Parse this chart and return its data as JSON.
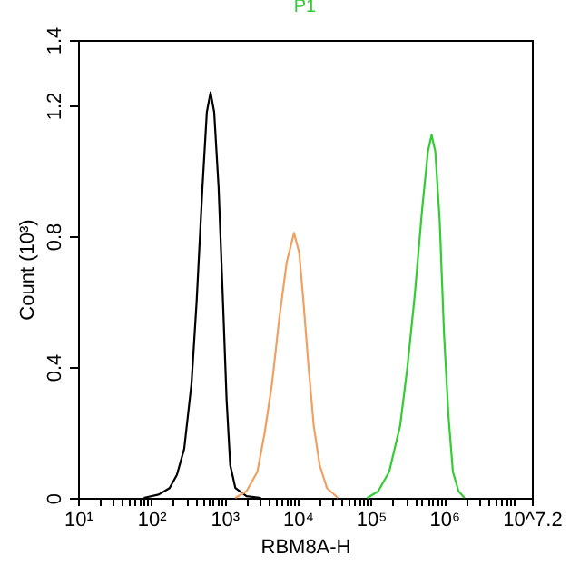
{
  "chart_data": {
    "type": "line",
    "title": "P1",
    "xlabel": "RBM8A-H",
    "ylabel": "Count (10³)",
    "log": "x",
    "grid": false,
    "marker": "none",
    "line_style": "solid",
    "xlim": [
      10,
      15848931.92
    ],
    "xticks": [
      {
        "value": 10,
        "label": "10¹"
      },
      {
        "value": 100,
        "label": "10²"
      },
      {
        "value": 1000,
        "label": "10³"
      },
      {
        "value": 10000,
        "label": "10⁴"
      },
      {
        "value": 100000,
        "label": "10⁵"
      },
      {
        "value": 1000000,
        "label": "10⁶"
      },
      {
        "value": 15848931.92,
        "label": "10^7.2"
      },
      {
        "value": 20,
        "label": null
      },
      {
        "value": 30,
        "label": null
      },
      {
        "value": 40,
        "label": null
      },
      {
        "value": 50,
        "label": null
      },
      {
        "value": 60,
        "label": null
      },
      {
        "value": 70,
        "label": null
      },
      {
        "value": 80,
        "label": null
      },
      {
        "value": 90,
        "label": null
      },
      {
        "value": 200,
        "label": null
      },
      {
        "value": 300,
        "label": null
      },
      {
        "value": 400,
        "label": null
      },
      {
        "value": 500,
        "label": null
      },
      {
        "value": 600,
        "label": null
      },
      {
        "value": 700,
        "label": null
      },
      {
        "value": 800,
        "label": null
      },
      {
        "value": 900,
        "label": null
      },
      {
        "value": 2000,
        "label": null
      },
      {
        "value": 3000,
        "label": null
      },
      {
        "value": 4000,
        "label": null
      },
      {
        "value": 5000,
        "label": null
      },
      {
        "value": 6000,
        "label": null
      },
      {
        "value": 7000,
        "label": null
      },
      {
        "value": 8000,
        "label": null
      },
      {
        "value": 9000,
        "label": null
      },
      {
        "value": 20000,
        "label": null
      },
      {
        "value": 30000,
        "label": null
      },
      {
        "value": 40000,
        "label": null
      },
      {
        "value": 50000,
        "label": null
      },
      {
        "value": 60000,
        "label": null
      },
      {
        "value": 70000,
        "label": null
      },
      {
        "value": 80000,
        "label": null
      },
      {
        "value": 90000,
        "label": null
      },
      {
        "value": 200000,
        "label": null
      },
      {
        "value": 300000,
        "label": null
      },
      {
        "value": 400000,
        "label": null
      },
      {
        "value": 500000,
        "label": null
      },
      {
        "value": 600000,
        "label": null
      },
      {
        "value": 700000,
        "label": null
      },
      {
        "value": 800000,
        "label": null
      },
      {
        "value": 900000,
        "label": null
      },
      {
        "value": 2000000,
        "label": null
      },
      {
        "value": 3000000,
        "label": null
      },
      {
        "value": 4000000,
        "label": null
      },
      {
        "value": 5000000,
        "label": null
      },
      {
        "value": 6000000,
        "label": null
      },
      {
        "value": 7000000,
        "label": null
      },
      {
        "value": 8000000,
        "label": null
      },
      {
        "value": 9000000,
        "label": null
      }
    ],
    "ylim": [
      0,
      1.4
    ],
    "yticks": [
      0,
      0.4,
      0.8,
      1.2,
      1.4
    ],
    "series": [
      {
        "color": "#000000",
        "x": [
          79,
          126,
          178,
          224,
          282,
          355,
          417,
          501,
          575,
          646,
          724,
          832,
          955,
          1070,
          1200,
          1410,
          2000,
          3160
        ],
        "values": [
          0,
          0.01,
          0.03,
          0.07,
          0.15,
          0.35,
          0.6,
          0.95,
          1.18,
          1.24,
          1.18,
          0.95,
          0.6,
          0.3,
          0.1,
          0.03,
          0.005,
          0
        ]
      },
      {
        "color": "#f0a060",
        "x": [
          1410,
          2000,
          2820,
          3550,
          4470,
          5620,
          7080,
          8910,
          10500,
          12000,
          14100,
          16600,
          20000,
          25100,
          35500
        ],
        "values": [
          0,
          0.02,
          0.08,
          0.2,
          0.35,
          0.55,
          0.72,
          0.81,
          0.75,
          0.6,
          0.4,
          0.22,
          0.1,
          0.03,
          0
        ]
      },
      {
        "color": "#33cc33",
        "x": [
          89100,
          126000,
          178000,
          251000,
          316000,
          398000,
          501000,
          603000,
          676000,
          759000,
          871000,
          1000000,
          1150000,
          1320000,
          1580000,
          1910000
        ],
        "values": [
          0,
          0.02,
          0.08,
          0.22,
          0.4,
          0.62,
          0.88,
          1.06,
          1.11,
          1.06,
          0.85,
          0.5,
          0.25,
          0.08,
          0.02,
          0
        ]
      }
    ]
  }
}
